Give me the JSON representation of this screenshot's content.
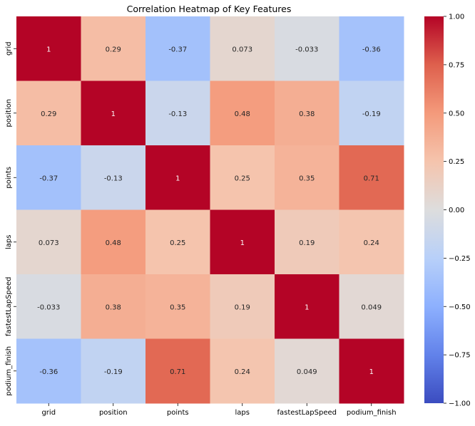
{
  "chart_data": {
    "type": "heatmap",
    "title": "Correlation Heatmap of Key Features",
    "xlabel": "",
    "ylabel": "",
    "x_categories": [
      "grid",
      "position",
      "points",
      "laps",
      "fastestLapSpeed",
      "podium_finish"
    ],
    "y_categories": [
      "grid",
      "position",
      "points",
      "laps",
      "fastestLapSpeed",
      "podium_finish"
    ],
    "values": [
      [
        1,
        0.29,
        -0.37,
        0.073,
        -0.033,
        -0.36
      ],
      [
        0.29,
        1,
        -0.13,
        0.48,
        0.38,
        -0.19
      ],
      [
        -0.37,
        -0.13,
        1,
        0.25,
        0.35,
        0.71
      ],
      [
        0.073,
        0.48,
        0.25,
        1,
        0.19,
        0.24
      ],
      [
        -0.033,
        0.38,
        0.35,
        0.19,
        1,
        0.049
      ],
      [
        -0.36,
        -0.19,
        0.71,
        0.24,
        0.049,
        1
      ]
    ],
    "value_labels": [
      [
        "1",
        "0.29",
        "-0.37",
        "0.073",
        "-0.033",
        "-0.36"
      ],
      [
        "0.29",
        "1",
        "-0.13",
        "0.48",
        "0.38",
        "-0.19"
      ],
      [
        "-0.37",
        "-0.13",
        "1",
        "0.25",
        "0.35",
        "0.71"
      ],
      [
        "0.073",
        "0.48",
        "0.25",
        "1",
        "0.19",
        "0.24"
      ],
      [
        "-0.033",
        "0.38",
        "0.35",
        "0.19",
        "1",
        "0.049"
      ],
      [
        "-0.36",
        "-0.19",
        "0.71",
        "0.24",
        "0.049",
        "1"
      ]
    ],
    "colormap": "coolwarm",
    "colorbar": {
      "range": [
        -1,
        1
      ],
      "ticks": [
        1.0,
        0.75,
        0.5,
        0.25,
        0.0,
        -0.25,
        -0.5,
        -0.75,
        -1.0
      ],
      "tick_labels": [
        "1.00",
        "0.75",
        "0.50",
        "0.25",
        "0.00",
        "−0.25",
        "−0.50",
        "−0.75",
        "−1.00"
      ]
    },
    "grid": false
  }
}
